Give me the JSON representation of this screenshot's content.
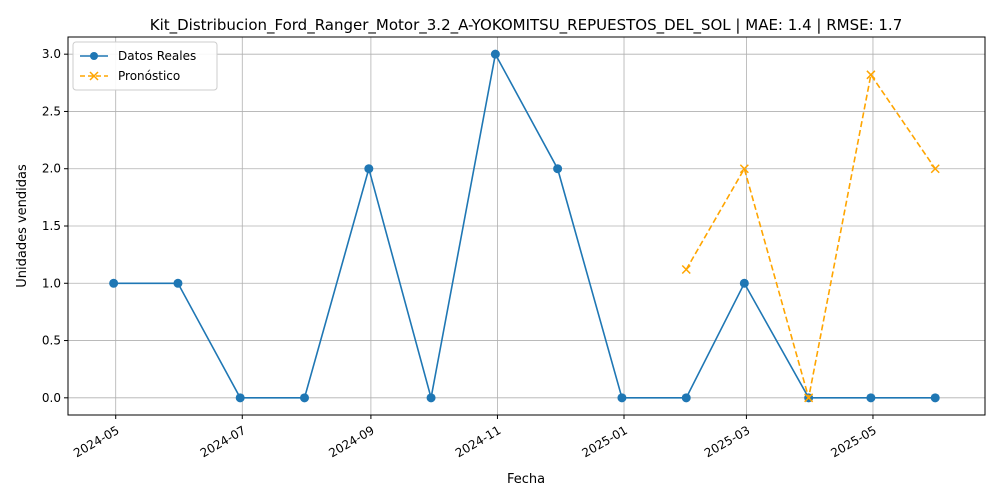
{
  "chart_data": {
    "type": "line",
    "title": "Kit_Distribucion_Ford_Ranger_Motor_3.2_A-YOKOMITSU_REPUESTOS_DEL_SOL | MAE: 1.4 | RMSE: 1.7",
    "xlabel": "Fecha",
    "ylabel": "Unidades vendidas",
    "xlim": [
      "2024-04-08",
      "2025-06-24"
    ],
    "ylim": [
      -0.15,
      3.15
    ],
    "grid": true,
    "legend_position": "top-left",
    "x_ticks": [
      "2024-05",
      "2024-07",
      "2024-09",
      "2024-11",
      "2025-01",
      "2025-03",
      "2025-05"
    ],
    "y_ticks": [
      "0.0",
      "0.5",
      "1.0",
      "1.5",
      "2.0",
      "2.5",
      "3.0"
    ],
    "series": [
      {
        "name": "Datos Reales",
        "color": "#1f77b4",
        "style": "solid",
        "marker": "circle",
        "x": [
          "2024-04-30",
          "2024-05-31",
          "2024-06-30",
          "2024-07-31",
          "2024-08-31",
          "2024-09-30",
          "2024-10-31",
          "2024-11-30",
          "2024-12-31",
          "2025-01-31",
          "2025-02-28",
          "2025-03-31",
          "2025-04-30",
          "2025-05-31"
        ],
        "values": [
          1,
          1,
          0,
          0,
          2,
          0,
          3,
          2,
          0,
          0,
          1,
          0,
          0,
          0
        ]
      },
      {
        "name": "Pronóstico",
        "color": "#ffa500",
        "style": "dashed",
        "marker": "x",
        "x": [
          "2025-01-31",
          "2025-02-28",
          "2025-03-31",
          "2025-04-30",
          "2025-05-31"
        ],
        "values": [
          1.12,
          2.0,
          0.0,
          2.82,
          2.0
        ]
      }
    ]
  }
}
